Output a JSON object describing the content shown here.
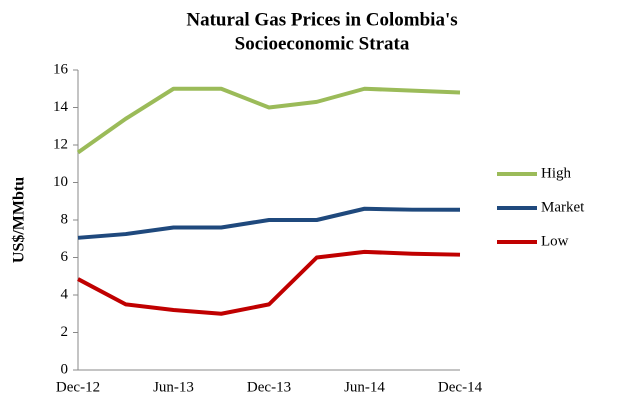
{
  "chart_data": {
    "type": "line",
    "title": [
      "Natural Gas Prices in Colombia's",
      "Socioeconomic Strata"
    ],
    "y_label": "US$/MMbtu",
    "categories": [
      "Dec-12",
      null,
      "Jun-13",
      null,
      "Dec-13",
      null,
      "Jun-14",
      null,
      "Dec-14"
    ],
    "series": [
      {
        "name": "High",
        "color": "#9bbb59",
        "values": [
          11.6,
          13.4,
          15,
          15,
          14,
          14.3,
          15,
          14.9,
          14.8
        ]
      },
      {
        "name": "Market",
        "color": "#1f497d",
        "values": [
          7.05,
          7.25,
          7.6,
          7.6,
          8,
          8,
          8.6,
          8.55,
          8.55
        ]
      },
      {
        "name": "Low",
        "color": "#c00000",
        "values": [
          4.85,
          3.5,
          3.2,
          3.0,
          3.5,
          6.0,
          6.3,
          6.2,
          6.15
        ]
      }
    ],
    "ylim": [
      0,
      16
    ],
    "yticks": [
      0,
      2,
      4,
      6,
      8,
      10,
      12,
      14,
      16
    ],
    "grid": false,
    "legend": "right"
  }
}
